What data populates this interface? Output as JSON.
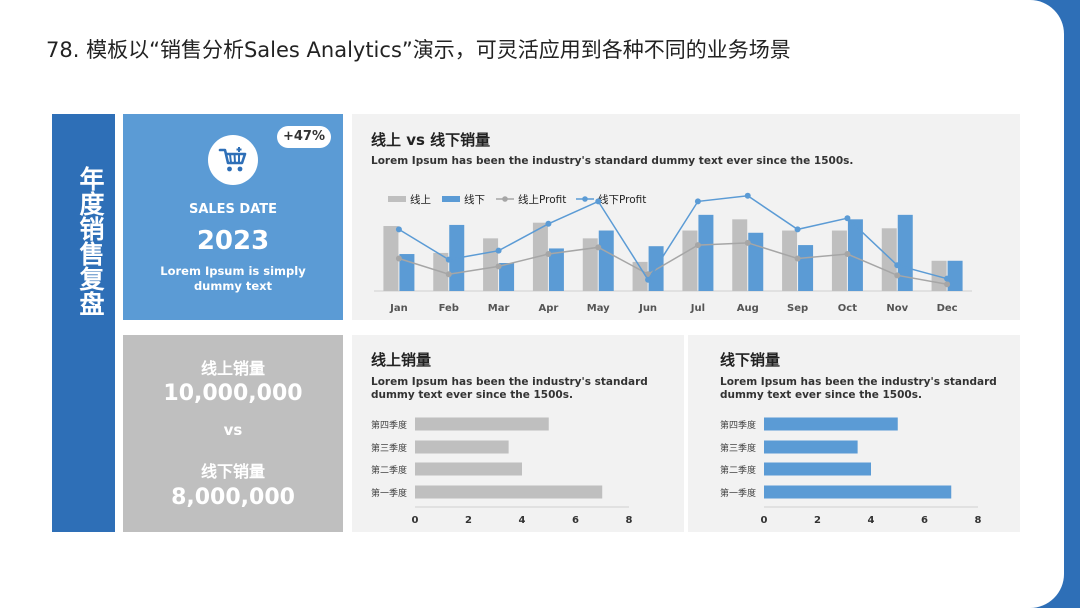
{
  "page_title": "78. 模板以“销售分析Sales Analytics”演示，可灵活应用到各种不同的业务场景",
  "side_title": "年度销售复盘",
  "kpi": {
    "badge": "+47%",
    "label": "SALES DATE",
    "year": "2023",
    "desc": "Lorem Ipsum is simply dummy text",
    "icon": "shopping-cart-icon"
  },
  "comparison": {
    "online_label": "线上销量",
    "online_value": "10,000,000",
    "vs": "vs",
    "offline_label": "线下销量",
    "offline_value": "8,000,000"
  },
  "colors": {
    "primary": "#2e6fb7",
    "accent": "#5b9bd5",
    "gray": "#bfbfbf",
    "line_gray": "#a6a6a6",
    "panel": "#f2f2f2"
  },
  "main_chart": {
    "title": "线上 vs 线下销量",
    "subtitle": "Lorem Ipsum has been the industry's standard dummy text ever since the 1500s."
  },
  "online_chart": {
    "title": "线上销量",
    "subtitle": "Lorem Ipsum has been the industry's standard dummy text ever since the 1500s."
  },
  "offline_chart": {
    "title": "线下销量",
    "subtitle": "Lorem Ipsum has been the industry's standard dummy text ever since the 1500s."
  },
  "chart_data": [
    {
      "type": "bar",
      "title": "线上 vs 线下销量",
      "categories": [
        "Jan",
        "Feb",
        "Mar",
        "Apr",
        "May",
        "Jun",
        "Jul",
        "Aug",
        "Sep",
        "Oct",
        "Nov",
        "Dec"
      ],
      "series": [
        {
          "name": "线上",
          "kind": "bar",
          "color": "#bfbfbf",
          "values": [
            5.8,
            3.4,
            4.7,
            6.1,
            4.7,
            2.6,
            5.4,
            6.4,
            5.4,
            5.4,
            5.6,
            2.7
          ]
        },
        {
          "name": "线下",
          "kind": "bar",
          "color": "#5b9bd5",
          "values": [
            3.3,
            5.9,
            2.5,
            3.8,
            5.4,
            4.0,
            6.8,
            5.2,
            4.1,
            6.4,
            6.8,
            2.7
          ]
        },
        {
          "name": "线上Profit",
          "kind": "line",
          "color": "#a6a6a6",
          "values": [
            2.9,
            1.5,
            2.2,
            3.3,
            3.9,
            1.5,
            4.1,
            4.3,
            2.9,
            3.3,
            1.4,
            0.6
          ]
        },
        {
          "name": "线下Profit",
          "kind": "line",
          "color": "#5b9bd5",
          "values": [
            5.5,
            2.8,
            3.6,
            6.0,
            8.0,
            1.0,
            8.0,
            8.5,
            5.5,
            6.5,
            2.3,
            1.1
          ]
        }
      ],
      "ylim": [
        0,
        10
      ],
      "legend_position": "top-left"
    },
    {
      "type": "bar",
      "orientation": "horizontal",
      "title": "线上销量",
      "categories": [
        "第四季度",
        "第三季度",
        "第二季度",
        "第一季度"
      ],
      "values": [
        5,
        3.5,
        4,
        7
      ],
      "color": "#bfbfbf",
      "xlim": [
        0,
        8
      ],
      "xticks": [
        0,
        2,
        4,
        6,
        8
      ]
    },
    {
      "type": "bar",
      "orientation": "horizontal",
      "title": "线下销量",
      "categories": [
        "第四季度",
        "第三季度",
        "第二季度",
        "第一季度"
      ],
      "values": [
        5,
        3.5,
        4,
        7
      ],
      "color": "#5b9bd5",
      "xlim": [
        0,
        8
      ],
      "xticks": [
        0,
        2,
        4,
        6,
        8
      ]
    }
  ]
}
